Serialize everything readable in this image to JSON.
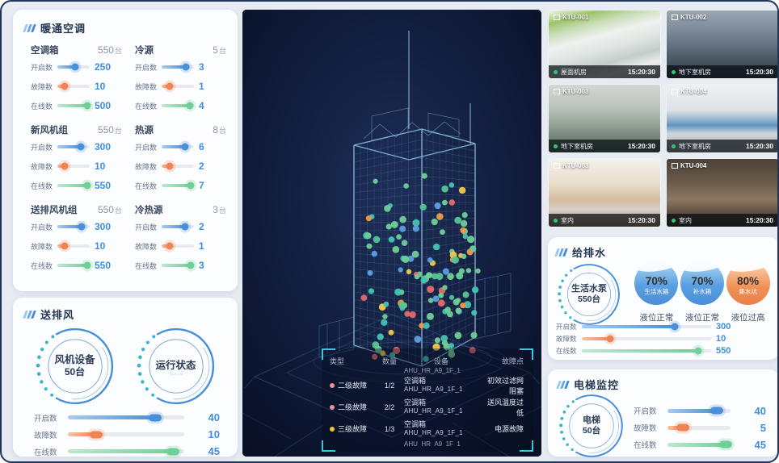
{
  "theme": {
    "accent_blue": "#3f8cd8",
    "value_blue": "#3f8ede",
    "orange": "#ef8354",
    "green": "#6fcf97",
    "teal_dots": "#3ab6c9",
    "dark_bg": "#0a1126",
    "sev2_pink": "#ef8f9b",
    "sev3_yellow": "#f3c13a",
    "online_green": "#2ecc71"
  },
  "hvac": {
    "title": "暖通空调",
    "groups": [
      {
        "name": "空调箱",
        "total": "550",
        "unit": "台",
        "metrics": [
          {
            "label": "开启数",
            "value": "250",
            "pct": 55,
            "color": "blue"
          },
          {
            "label": "故障数",
            "value": "10",
            "pct": 22,
            "color": "orange"
          },
          {
            "label": "在线数",
            "value": "500",
            "pct": 92,
            "color": "green"
          }
        ]
      },
      {
        "name": "冷源",
        "total": "5",
        "unit": "台",
        "metrics": [
          {
            "label": "开启数",
            "value": "3",
            "pct": 76,
            "color": "blue"
          },
          {
            "label": "故障数",
            "value": "1",
            "pct": 24,
            "color": "orange"
          },
          {
            "label": "在线数",
            "value": "4",
            "pct": 88,
            "color": "green"
          }
        ]
      },
      {
        "name": "新风机组",
        "total": "550",
        "unit": "台",
        "metrics": [
          {
            "label": "开启数",
            "value": "300",
            "pct": 72,
            "color": "blue"
          },
          {
            "label": "故障数",
            "value": "10",
            "pct": 22,
            "color": "orange"
          },
          {
            "label": "在线数",
            "value": "550",
            "pct": 93,
            "color": "green"
          }
        ]
      },
      {
        "name": "热源",
        "total": "8",
        "unit": "台",
        "metrics": [
          {
            "label": "开启数",
            "value": "6",
            "pct": 72,
            "color": "blue"
          },
          {
            "label": "故障数",
            "value": "2",
            "pct": 26,
            "color": "orange"
          },
          {
            "label": "在线数",
            "value": "7",
            "pct": 90,
            "color": "green"
          }
        ]
      },
      {
        "name": "送排风机组",
        "total": "550",
        "unit": "台",
        "metrics": [
          {
            "label": "开启数",
            "value": "300",
            "pct": 74,
            "color": "blue"
          },
          {
            "label": "故障数",
            "value": "10",
            "pct": 22,
            "color": "orange"
          },
          {
            "label": "在线数",
            "value": "550",
            "pct": 93,
            "color": "green"
          }
        ]
      },
      {
        "name": "冷热源",
        "total": "3",
        "unit": "台",
        "metrics": [
          {
            "label": "开启数",
            "value": "2",
            "pct": 72,
            "color": "blue"
          },
          {
            "label": "故障数",
            "value": "1",
            "pct": 26,
            "color": "orange"
          },
          {
            "label": "在线数",
            "value": "3",
            "pct": 90,
            "color": "green"
          }
        ]
      }
    ]
  },
  "fans": {
    "title": "送排风",
    "gauges": [
      {
        "name": "风机设备",
        "count": "50台"
      },
      {
        "name": "运行状态",
        "count": ""
      }
    ],
    "metrics": [
      {
        "label": "开启数",
        "value": "40",
        "pct": 75,
        "color": "blue"
      },
      {
        "label": "故障数",
        "value": "10",
        "pct": 24,
        "color": "orange"
      },
      {
        "label": "在线数",
        "value": "45",
        "pct": 90,
        "color": "green"
      }
    ]
  },
  "center": {
    "table": {
      "headers": [
        "类型",
        "数量",
        "设备",
        "故障点"
      ],
      "partial_top": "AHU_HR_A9_1F_1",
      "rows": [
        {
          "level": "二级故障",
          "dot": "#ef8f9b",
          "qty": "1/2",
          "dev1": "空调箱",
          "dev2": "AHU_HR_A9_1F_1",
          "fault": "初效过滤网阻塞"
        },
        {
          "level": "二级故障",
          "dot": "#ef8f9b",
          "qty": "2/2",
          "dev1": "空调箱",
          "dev2": "AHU_HR_A9_1F_1",
          "fault": "送风温度过低"
        },
        {
          "level": "三级故障",
          "dot": "#f3c13a",
          "qty": "1/3",
          "dev1": "空调箱",
          "dev2": "AHU_HR_A9_1F_1",
          "fault": "电源故障"
        }
      ],
      "partial_bottom": "AHU_HR_A9_1F_1"
    }
  },
  "cameras": [
    {
      "id": "KTU-001",
      "loc": "屋面机房",
      "time": "15:20:30",
      "scene": "scene-1"
    },
    {
      "id": "KTU-002",
      "loc": "地下室机房",
      "time": "15:20:30",
      "scene": "scene-2"
    },
    {
      "id": "KTU-003",
      "loc": "地下室机房",
      "time": "15:20:30",
      "scene": "scene-3"
    },
    {
      "id": "KTU-004",
      "loc": "地下室机房",
      "time": "15:20:30",
      "scene": "scene-4"
    },
    {
      "id": "KTU-003",
      "loc": "室内",
      "time": "15:20:30",
      "scene": "scene-5"
    },
    {
      "id": "KTU-004",
      "loc": "室内",
      "time": "15:20:30",
      "scene": "scene-6"
    }
  ],
  "water": {
    "title": "给排水",
    "gauge": {
      "name": "生活水泵",
      "count": "550台"
    },
    "tanks": [
      {
        "pct": "70%",
        "name": "生活水箱",
        "status": "液位正常",
        "color": "tank-blue"
      },
      {
        "pct": "70%",
        "name": "补水箱",
        "status": "液位正常",
        "color": "tank-blue"
      },
      {
        "pct": "80%",
        "name": "集水坑",
        "status": "液位过高",
        "color": "tank-orange"
      }
    ],
    "metrics": [
      {
        "label": "开启数",
        "value": "300",
        "pct": 72,
        "color": "blue"
      },
      {
        "label": "故障数",
        "value": "10",
        "pct": 22,
        "color": "orange"
      },
      {
        "label": "在线数",
        "value": "550",
        "pct": 90,
        "color": "green"
      }
    ]
  },
  "elevator": {
    "title": "电梯监控",
    "gauge": {
      "name": "电梯",
      "count": "50台"
    },
    "metrics": [
      {
        "label": "开启数",
        "value": "40",
        "pct": 78,
        "color": "blue"
      },
      {
        "label": "故障数",
        "value": "5",
        "pct": 24,
        "color": "orange"
      },
      {
        "label": "在线数",
        "value": "45",
        "pct": 92,
        "color": "green"
      }
    ]
  }
}
